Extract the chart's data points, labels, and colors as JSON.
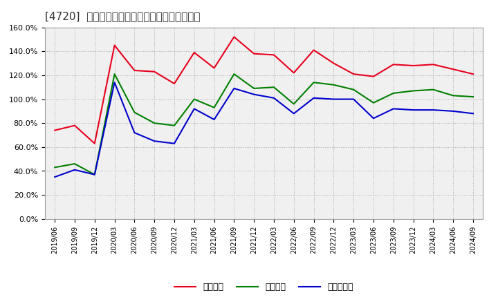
{
  "title": "[4720]  流動比率、当座比率、現預金比率の推移",
  "x_labels": [
    "2019/06",
    "2019/09",
    "2019/12",
    "2020/03",
    "2020/06",
    "2020/09",
    "2020/12",
    "2021/03",
    "2021/06",
    "2021/09",
    "2021/12",
    "2022/03",
    "2022/06",
    "2022/09",
    "2022/12",
    "2023/03",
    "2023/06",
    "2023/09",
    "2023/12",
    "2024/03",
    "2024/06",
    "2024/09"
  ],
  "ryudo": [
    74,
    78,
    63,
    145,
    124,
    123,
    113,
    139,
    126,
    152,
    138,
    137,
    122,
    141,
    130,
    121,
    119,
    129,
    128,
    129,
    125,
    121
  ],
  "toza": [
    43,
    46,
    37,
    121,
    89,
    80,
    78,
    100,
    93,
    121,
    109,
    110,
    96,
    114,
    112,
    108,
    97,
    105,
    107,
    108,
    103,
    102
  ],
  "genyo": [
    35,
    41,
    37,
    114,
    72,
    65,
    63,
    92,
    83,
    109,
    104,
    101,
    88,
    101,
    100,
    100,
    84,
    92,
    91,
    91,
    90,
    88
  ],
  "ryudo_color": "#e8001c",
  "toza_color": "#008000",
  "genyo_color": "#0000cd",
  "bg_color": "#f0f0f0",
  "grid_color": "#aaaaaa",
  "ylim": [
    0,
    160
  ],
  "yticks": [
    0,
    20,
    40,
    60,
    80,
    100,
    120,
    140,
    160
  ],
  "legend_labels": [
    "流動比率",
    "当座比率",
    "現預金比率"
  ],
  "title_prefix": "[4720]  ",
  "title_suffix": "流動比率、当座比率、現預金比率の推移"
}
